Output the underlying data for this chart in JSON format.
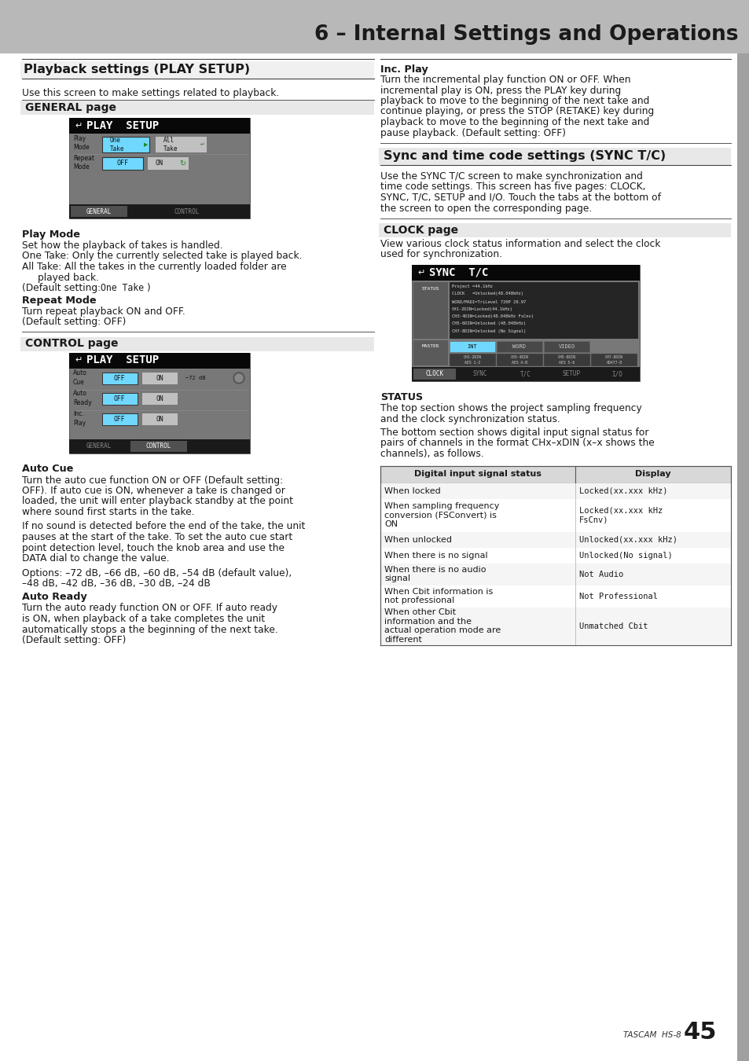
{
  "page_bg": "#ffffff",
  "header_bg": "#b8b8b8",
  "header_text": "6 – Internal Settings and Operations",
  "header_text_color": "#1a1a1a",
  "sidebar_color": "#a0a0a0",
  "footer_text": "TASCAM  HS-8",
  "footer_page": "45",
  "section1_title": "Playback settings (PLAY SETUP)",
  "section1_intro": "Use this screen to make settings related to playback.",
  "subsection1_title": "GENERAL page",
  "subsection2_title": "CONTROL page",
  "subsection3_title": "CLOCK page",
  "section2_title": "Sync and time code settings (SYNC T/C)",
  "section2_intro": "Use the SYNC T/C screen to make synchronization and\ntime code settings. This screen has five pages: CLOCK,\nSYNC, T/C, SETUP and I/O. Touch the tabs at the bottom of\nthe screen to open the corresponding page.",
  "play_mode_bold": "Play Mode",
  "play_mode_text1": "Set how the playback of takes is handled.",
  "play_mode_text2": "One Take: Only the currently selected take is played back.",
  "play_mode_text3a": "All Take: All the takes in the currently loaded folder are",
  "play_mode_text3b": "    played back.",
  "play_mode_text4a": "(Default setting: ",
  "play_mode_text4b": "One Take",
  "play_mode_text4c": ")",
  "repeat_mode_bold": "Repeat Mode",
  "repeat_mode_text1": "Turn repeat playback ON and OFF.",
  "repeat_mode_text2": "(Default setting: OFF)",
  "auto_cue_bold": "Auto Cue",
  "auto_cue_lines": [
    "Turn the auto cue function ON or OFF (Default setting:",
    "OFF). If auto cue is ON, whenever a take is changed or",
    "loaded, the unit will enter playback standby at the point",
    "where sound first starts in the take.",
    "",
    "If no sound is detected before the end of the take, the unit",
    "pauses at the start of the take. To set the auto cue start",
    "point detection level, touch the knob area and use the",
    "DATA dial to change the value.",
    "",
    "Options: –72 dB, –66 dB, –60 dB, –54 dB (default value),",
    "–48 dB, –42 dB, –36 dB, –30 dB, –24 dB"
  ],
  "auto_ready_bold": "Auto Ready",
  "auto_ready_lines": [
    "Turn the auto ready function ON or OFF. If auto ready",
    "is ON, when playback of a take completes the unit",
    "automatically stops a the beginning of the next take.",
    "(Default setting: OFF)"
  ],
  "clock_intro_lines": [
    "View various clock status information and select the clock",
    "used for synchronization."
  ],
  "status_bold": "STATUS",
  "status_lines1": [
    "The top section shows the project sampling frequency",
    "and the clock synchronization status."
  ],
  "status_lines2": [
    "The bottom section shows digital input signal status for",
    "pairs of channels in the format CHx–xDIN (x–x shows the",
    "channels), as follows."
  ],
  "inc_play_bold": "Inc. Play",
  "inc_play_lines": [
    "Turn the incremental play function ON or OFF. When",
    "incremental play is ON, press the PLAY key during",
    "playback to move to the beginning of the next take and",
    "continue playing, or press the STOP (RETAKE) key during",
    "playback to move to the beginning of the next take and",
    "pause playback. (Default setting: OFF)"
  ],
  "table_headers": [
    "Digital input signal status",
    "Display"
  ],
  "table_rows": [
    [
      "When locked",
      "Locked(xx.xxx kHz)"
    ],
    [
      "When sampling frequency\nconversion (FSConvert) is\nON",
      "Locked(xx.xxx kHz\nFsCnv)"
    ],
    [
      "When unlocked",
      "Unlocked(xx.xxx kHz)"
    ],
    [
      "When there is no signal",
      "Unlocked(No signal)"
    ],
    [
      "When there is no audio\nsignal",
      "Not Audio"
    ],
    [
      "When Cbit information is\nnot professional",
      "Not Professional"
    ],
    [
      "When other Cbit\ninformation and the\nactual operation mode are\ndifferent",
      "Unmatched Cbit"
    ]
  ],
  "table_row_heights": [
    20,
    42,
    20,
    20,
    28,
    28,
    48
  ]
}
